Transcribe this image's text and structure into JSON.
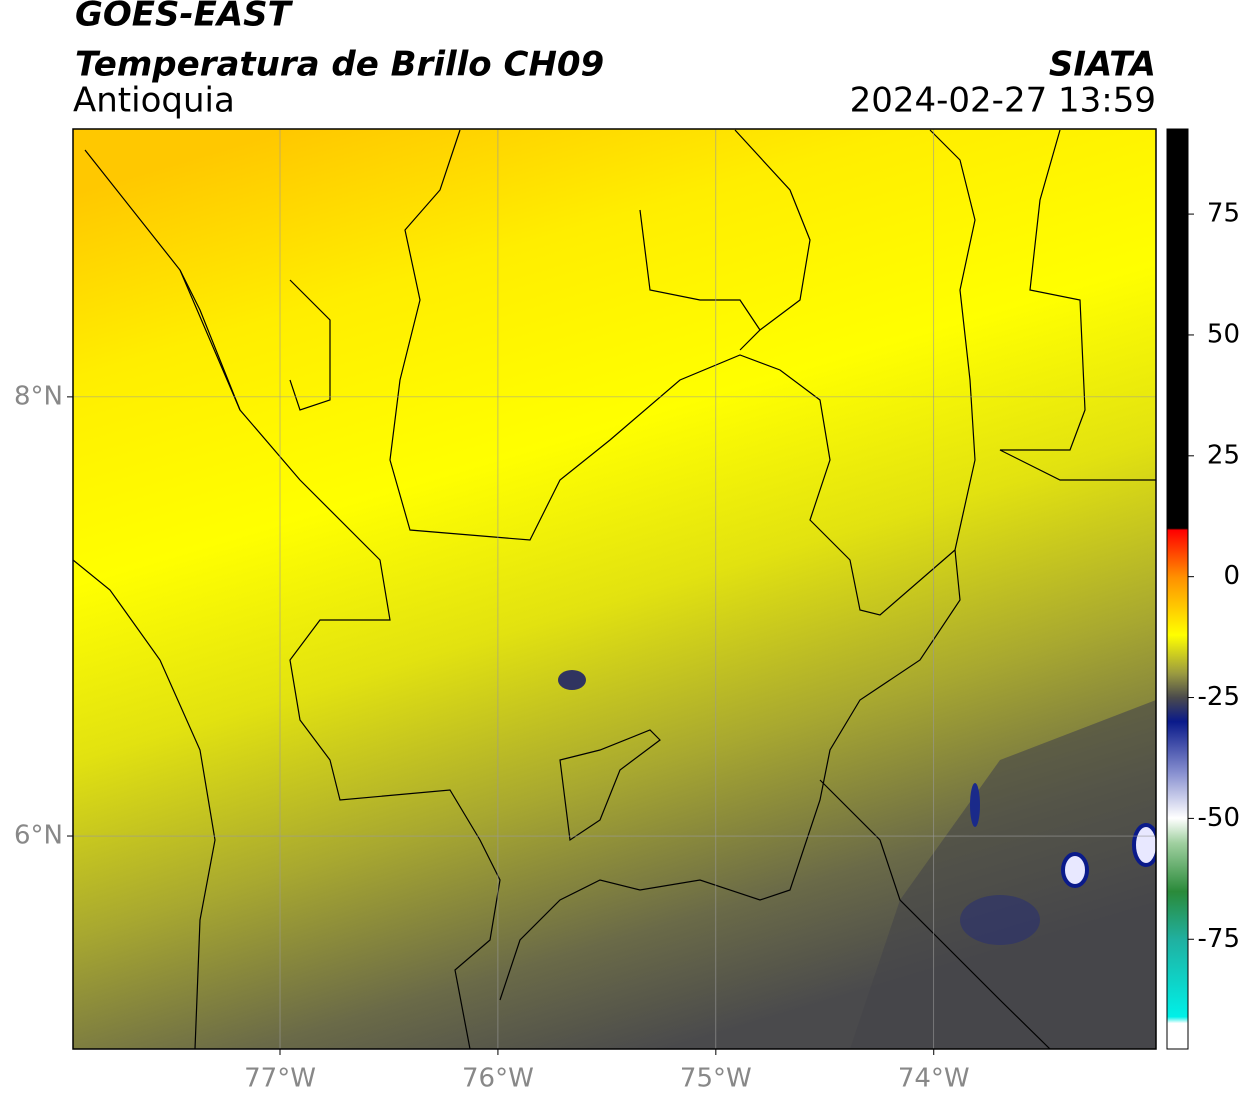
{
  "chart_data": {
    "type": "map",
    "title": "GOES-EAST",
    "subtitle": "Temperatura de Brillo CH09",
    "region": "Antioquia",
    "source": "SIATA",
    "timestamp": "2024-02-27 13:59",
    "xlim": [
      -77.95,
      -72.98
    ],
    "ylim": [
      5.03,
      9.22
    ],
    "xticks": [
      {
        "value": -77,
        "label": "77°W"
      },
      {
        "value": -76,
        "label": "76°W"
      },
      {
        "value": -75,
        "label": "75°W"
      },
      {
        "value": -74,
        "label": "74°W"
      }
    ],
    "yticks": [
      {
        "value": 6,
        "label": "6°N"
      },
      {
        "value": 8,
        "label": "8°N"
      }
    ],
    "grid": true,
    "colorbar": {
      "lim": [
        -97.7,
        92.6
      ],
      "ticks": [
        75,
        50,
        25,
        0,
        -25,
        -50,
        -75
      ]
    }
  }
}
